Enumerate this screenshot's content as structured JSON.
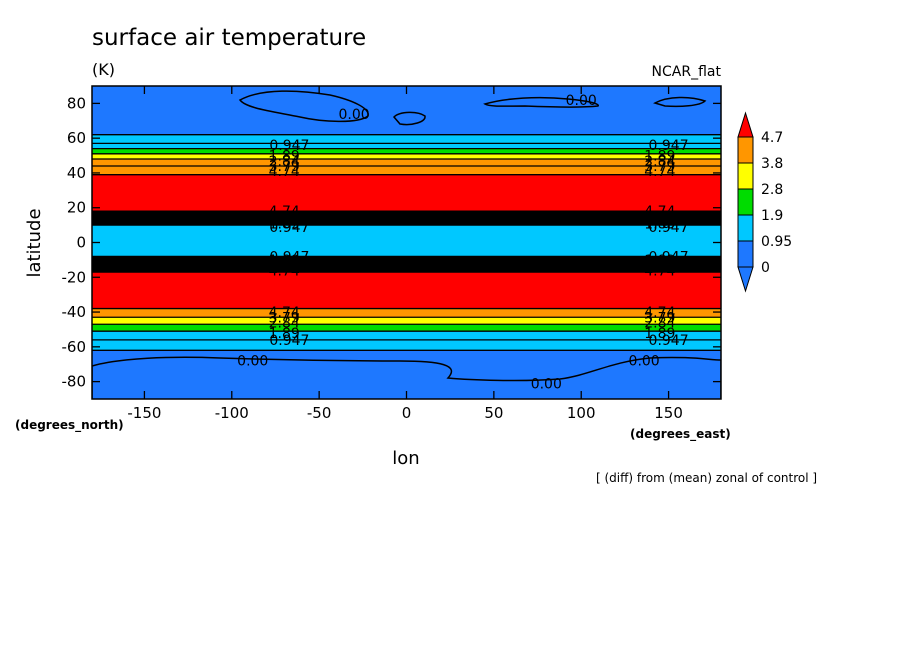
{
  "chart_data": {
    "type": "contour",
    "title": "surface air temperature",
    "units": "(K)",
    "model_label": "NCAR_flat",
    "xlabel": "lon",
    "ylabel": "latitude",
    "x_unit_label": "(degrees_east)",
    "y_unit_label": "(degrees_north)",
    "footnote": "[ (diff) from (mean) zonal of control ]",
    "xlim": [
      -180,
      180
    ],
    "ylim": [
      -90,
      90
    ],
    "x_ticks": [
      -150,
      -100,
      -50,
      0,
      50,
      100,
      150
    ],
    "y_ticks": [
      -80,
      -60,
      -40,
      -20,
      0,
      20,
      40,
      60,
      80
    ],
    "colorbar": {
      "levels": [
        0,
        0.95,
        1.9,
        2.8,
        3.8,
        4.7
      ],
      "labels": [
        "0",
        "0.95",
        "1.9",
        "2.8",
        "3.8",
        "4.7"
      ],
      "colors": [
        "#1e78ff",
        "#00c8ff",
        "#00dc00",
        "#ffff00",
        "#ff9600",
        "#ff0000"
      ],
      "below_color": "#1e78ff",
      "above_color": "#ff0000"
    },
    "zonal_bands": [
      {
        "lat": [
          62,
          90
        ],
        "color": "#1e78ff"
      },
      {
        "lat": [
          57,
          62
        ],
        "color": "#00c8ff"
      },
      {
        "lat": [
          54,
          57
        ],
        "color": "#00c8ff"
      },
      {
        "lat": [
          51,
          54
        ],
        "color": "#00dc00"
      },
      {
        "lat": [
          48,
          51
        ],
        "color": "#ffff00"
      },
      {
        "lat": [
          44,
          48
        ],
        "color": "#ff9600"
      },
      {
        "lat": [
          39,
          44
        ],
        "color": "#ff9600"
      },
      {
        "lat": [
          18,
          39
        ],
        "color": "#ff0000"
      },
      {
        "lat": [
          10,
          18
        ],
        "color": "#000000"
      },
      {
        "lat": [
          -8,
          10
        ],
        "color": "#00c8ff"
      },
      {
        "lat": [
          -17,
          -8
        ],
        "color": "#000000"
      },
      {
        "lat": [
          -38,
          -17
        ],
        "color": "#ff0000"
      },
      {
        "lat": [
          -43,
          -38
        ],
        "color": "#ff9600"
      },
      {
        "lat": [
          -47,
          -43
        ],
        "color": "#ffff00"
      },
      {
        "lat": [
          -51,
          -47
        ],
        "color": "#00dc00"
      },
      {
        "lat": [
          -56,
          -51
        ],
        "color": "#00c8ff"
      },
      {
        "lat": [
          -62,
          -56
        ],
        "color": "#00c8ff"
      },
      {
        "lat": [
          -90,
          -62
        ],
        "color": "#1e78ff"
      }
    ],
    "contour_labels": [
      {
        "text": "0.00",
        "lon": -30,
        "lat": 74
      },
      {
        "text": "0.00",
        "lon": 100,
        "lat": 82
      },
      {
        "text": "0.947",
        "lon": -67,
        "lat": 56
      },
      {
        "text": "1.89",
        "lon": -70,
        "lat": 50
      },
      {
        "text": "2.84",
        "lon": -70,
        "lat": 47
      },
      {
        "text": "3.79",
        "lon": -70,
        "lat": 44
      },
      {
        "text": "4.74",
        "lon": -70,
        "lat": 41
      },
      {
        "text": "0.947",
        "lon": 150,
        "lat": 56
      },
      {
        "text": "1.89",
        "lon": 145,
        "lat": 50
      },
      {
        "text": "2.84",
        "lon": 145,
        "lat": 47
      },
      {
        "text": "3.79",
        "lon": 145,
        "lat": 44
      },
      {
        "text": "4.74",
        "lon": 145,
        "lat": 41
      },
      {
        "text": "4.74",
        "lon": -70,
        "lat": 18
      },
      {
        "text": "3.79",
        "lon": -70,
        "lat": 15
      },
      {
        "text": "2.84",
        "lon": -70,
        "lat": 13
      },
      {
        "text": "1.89",
        "lon": -70,
        "lat": 11
      },
      {
        "text": "0.947",
        "lon": -67,
        "lat": 9
      },
      {
        "text": "4.74",
        "lon": 145,
        "lat": 18
      },
      {
        "text": "3.79",
        "lon": 145,
        "lat": 15
      },
      {
        "text": "2.84",
        "lon": 145,
        "lat": 13
      },
      {
        "text": "1.89",
        "lon": 145,
        "lat": 11
      },
      {
        "text": "0.947",
        "lon": 150,
        "lat": 9
      },
      {
        "text": "0.947",
        "lon": -67,
        "lat": -8
      },
      {
        "text": "1.89",
        "lon": -70,
        "lat": -10
      },
      {
        "text": "2.84",
        "lon": -70,
        "lat": -12
      },
      {
        "text": "3.79",
        "lon": -70,
        "lat": -14
      },
      {
        "text": "4.74",
        "lon": -70,
        "lat": -16
      },
      {
        "text": "0.947",
        "lon": 150,
        "lat": -8
      },
      {
        "text": "1.89",
        "lon": 145,
        "lat": -10
      },
      {
        "text": "2.84",
        "lon": 145,
        "lat": -12
      },
      {
        "text": "3.79",
        "lon": 145,
        "lat": -14
      },
      {
        "text": "4.74",
        "lon": 145,
        "lat": -16
      },
      {
        "text": "4.74",
        "lon": -70,
        "lat": -40
      },
      {
        "text": "3.79",
        "lon": -70,
        "lat": -43
      },
      {
        "text": "2.84",
        "lon": -70,
        "lat": -46
      },
      {
        "text": "1.89",
        "lon": -70,
        "lat": -52
      },
      {
        "text": "0.947",
        "lon": -67,
        "lat": -56
      },
      {
        "text": "4.74",
        "lon": 145,
        "lat": -40
      },
      {
        "text": "3.79",
        "lon": 145,
        "lat": -43
      },
      {
        "text": "2.84",
        "lon": 145,
        "lat": -46
      },
      {
        "text": "1.89",
        "lon": 145,
        "lat": -52
      },
      {
        "text": "0.947",
        "lon": 150,
        "lat": -56
      },
      {
        "text": "0.00",
        "lon": -88,
        "lat": -68
      },
      {
        "text": "0.00",
        "lon": 80,
        "lat": -81
      },
      {
        "text": "0.00",
        "lon": 136,
        "lat": -68
      }
    ]
  }
}
